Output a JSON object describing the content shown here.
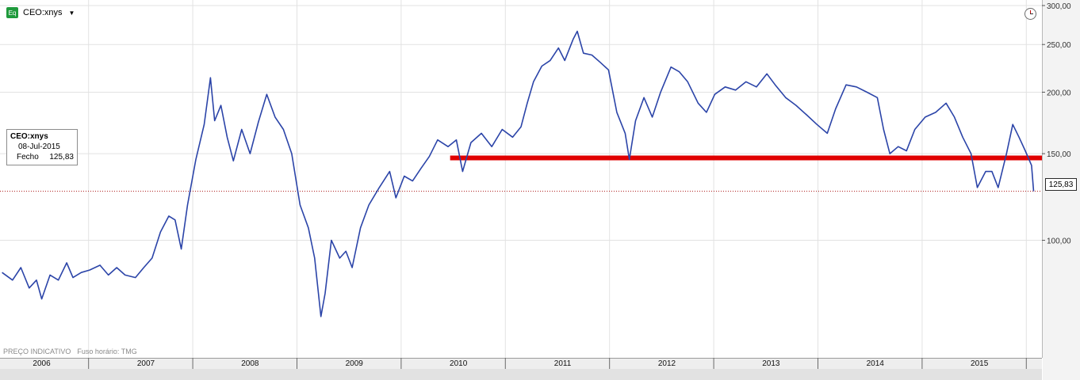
{
  "header": {
    "badge": "Eq",
    "symbol": "CEO:xnys"
  },
  "info_box": {
    "symbol": "CEO:xnys",
    "date": "08-Jul-2015",
    "label": "Fecho",
    "value": "125,83"
  },
  "footer": {
    "note": "PREÇO INDICATIVO",
    "timezone": "Fuso horário: TMG"
  },
  "last_price_label": "125,83",
  "colors": {
    "series": "#2b44a8",
    "support_line": "#e00000",
    "last_price_line": "#b02020",
    "grid": "#e2e2e2"
  },
  "chart_data": {
    "type": "line",
    "title": "",
    "xlabel": "",
    "ylabel": "",
    "y_scale": "log",
    "ylim": [
      64,
      300
    ],
    "xlim": [
      2005.6,
      2015.6
    ],
    "grid": true,
    "y_ticks": [
      {
        "value": 100,
        "label": "100,00"
      },
      {
        "value": 150,
        "label": "150,00"
      },
      {
        "value": 200,
        "label": "200,00"
      },
      {
        "value": 250,
        "label": "250,00"
      },
      {
        "value": 300,
        "label": "300,00"
      }
    ],
    "x_ticks": [
      {
        "value": 2006,
        "label": "2006"
      },
      {
        "value": 2007,
        "label": "2007"
      },
      {
        "value": 2008,
        "label": "2008"
      },
      {
        "value": 2009,
        "label": "2009"
      },
      {
        "value": 2010,
        "label": "2010"
      },
      {
        "value": 2011,
        "label": "2011"
      },
      {
        "value": 2012,
        "label": "2012"
      },
      {
        "value": 2013,
        "label": "2013"
      },
      {
        "value": 2014,
        "label": "2014"
      },
      {
        "value": 2015,
        "label": "2015"
      }
    ],
    "x_boundaries": [
      2006.45,
      2007.45,
      2008.45,
      2009.45,
      2010.45,
      2011.45,
      2012.45,
      2013.45,
      2014.45,
      2015.45
    ],
    "series": [
      {
        "values": [
          [
            2005.62,
            86
          ],
          [
            2005.72,
            83
          ],
          [
            2005.8,
            88
          ],
          [
            2005.88,
            80
          ],
          [
            2005.95,
            83
          ],
          [
            2006.0,
            76
          ],
          [
            2006.08,
            85
          ],
          [
            2006.16,
            83
          ],
          [
            2006.24,
            90
          ],
          [
            2006.3,
            84
          ],
          [
            2006.38,
            86
          ],
          [
            2006.46,
            87
          ],
          [
            2006.56,
            89
          ],
          [
            2006.64,
            85
          ],
          [
            2006.72,
            88
          ],
          [
            2006.8,
            85
          ],
          [
            2006.9,
            84
          ],
          [
            2006.98,
            88
          ],
          [
            2007.06,
            92
          ],
          [
            2007.14,
            104
          ],
          [
            2007.22,
            112
          ],
          [
            2007.28,
            110
          ],
          [
            2007.34,
            96
          ],
          [
            2007.4,
            118
          ],
          [
            2007.48,
            146
          ],
          [
            2007.56,
            172
          ],
          [
            2007.62,
            214
          ],
          [
            2007.66,
            175
          ],
          [
            2007.72,
            188
          ],
          [
            2007.78,
            162
          ],
          [
            2007.84,
            145
          ],
          [
            2007.92,
            168
          ],
          [
            2008.0,
            150
          ],
          [
            2008.08,
            174
          ],
          [
            2008.16,
            198
          ],
          [
            2008.24,
            178
          ],
          [
            2008.32,
            168
          ],
          [
            2008.4,
            150
          ],
          [
            2008.48,
            118
          ],
          [
            2008.56,
            106
          ],
          [
            2008.62,
            92
          ],
          [
            2008.68,
            70
          ],
          [
            2008.72,
            78
          ],
          [
            2008.78,
            100
          ],
          [
            2008.86,
            92
          ],
          [
            2008.92,
            95
          ],
          [
            2008.98,
            88
          ],
          [
            2009.06,
            106
          ],
          [
            2009.14,
            118
          ],
          [
            2009.24,
            128
          ],
          [
            2009.34,
            138
          ],
          [
            2009.4,
            122
          ],
          [
            2009.48,
            135
          ],
          [
            2009.56,
            132
          ],
          [
            2009.64,
            140
          ],
          [
            2009.72,
            148
          ],
          [
            2009.8,
            160
          ],
          [
            2009.9,
            155
          ],
          [
            2009.98,
            160
          ],
          [
            2010.04,
            138
          ],
          [
            2010.12,
            158
          ],
          [
            2010.22,
            165
          ],
          [
            2010.32,
            155
          ],
          [
            2010.42,
            168
          ],
          [
            2010.52,
            162
          ],
          [
            2010.6,
            170
          ],
          [
            2010.66,
            190
          ],
          [
            2010.72,
            210
          ],
          [
            2010.8,
            226
          ],
          [
            2010.88,
            232
          ],
          [
            2010.96,
            246
          ],
          [
            2011.02,
            232
          ],
          [
            2011.1,
            256
          ],
          [
            2011.14,
            266
          ],
          [
            2011.2,
            240
          ],
          [
            2011.28,
            238
          ],
          [
            2011.36,
            230
          ],
          [
            2011.44,
            222
          ],
          [
            2011.52,
            182
          ],
          [
            2011.6,
            165
          ],
          [
            2011.64,
            146
          ],
          [
            2011.7,
            175
          ],
          [
            2011.78,
            195
          ],
          [
            2011.86,
            178
          ],
          [
            2011.94,
            200
          ],
          [
            2012.04,
            225
          ],
          [
            2012.12,
            220
          ],
          [
            2012.2,
            210
          ],
          [
            2012.3,
            190
          ],
          [
            2012.38,
            182
          ],
          [
            2012.46,
            198
          ],
          [
            2012.56,
            205
          ],
          [
            2012.66,
            202
          ],
          [
            2012.76,
            210
          ],
          [
            2012.86,
            205
          ],
          [
            2012.96,
            218
          ],
          [
            2013.04,
            207
          ],
          [
            2013.14,
            195
          ],
          [
            2013.24,
            188
          ],
          [
            2013.34,
            180
          ],
          [
            2013.44,
            172
          ],
          [
            2013.54,
            165
          ],
          [
            2013.62,
            185
          ],
          [
            2013.72,
            207
          ],
          [
            2013.82,
            205
          ],
          [
            2013.92,
            200
          ],
          [
            2014.02,
            195
          ],
          [
            2014.08,
            168
          ],
          [
            2014.14,
            150
          ],
          [
            2014.22,
            155
          ],
          [
            2014.3,
            152
          ],
          [
            2014.38,
            168
          ],
          [
            2014.48,
            178
          ],
          [
            2014.58,
            182
          ],
          [
            2014.68,
            190
          ],
          [
            2014.76,
            178
          ],
          [
            2014.84,
            162
          ],
          [
            2014.92,
            150
          ],
          [
            2014.98,
            128
          ],
          [
            2015.06,
            138
          ],
          [
            2015.12,
            138
          ],
          [
            2015.18,
            128
          ],
          [
            2015.26,
            150
          ],
          [
            2015.32,
            172
          ],
          [
            2015.38,
            162
          ],
          [
            2015.44,
            152
          ],
          [
            2015.5,
            142
          ],
          [
            2015.52,
            125.83
          ]
        ]
      }
    ],
    "horizontal_lines": [
      {
        "value": 147,
        "from_x": 2009.92,
        "to_x": 2015.6,
        "style": "thick-red"
      },
      {
        "value": 125.83,
        "from_x": 2005.6,
        "to_x": 2015.6,
        "style": "dotted-red"
      }
    ]
  }
}
